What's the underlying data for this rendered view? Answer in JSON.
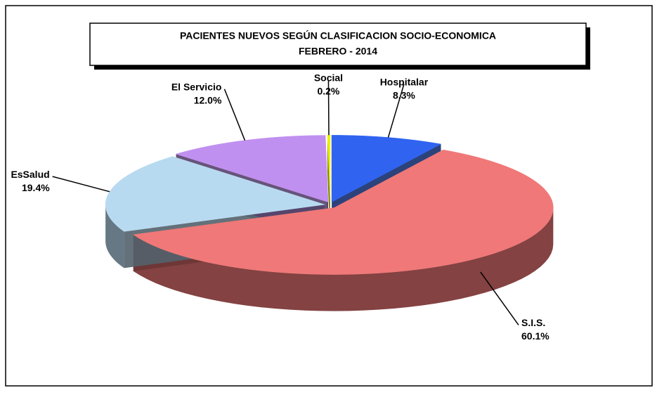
{
  "chart_data": {
    "type": "pie",
    "title": "PACIENTES NUEVOS SEGÚN CLASIFICACION SOCIO-ECONOMICA",
    "subtitle": "FEBRERO  - 2014",
    "categories": [
      "Hospitalar",
      "S.I.S.",
      "EsSalud",
      "El Servicio",
      "Social"
    ],
    "values": [
      8.3,
      60.1,
      19.4,
      12.0,
      0.2
    ],
    "value_labels": [
      "8.3%",
      "60.1%",
      "19.4%",
      "12.0%",
      "0.2%"
    ],
    "colors": [
      "#2f63f0",
      "#f07878",
      "#b8daf0",
      "#c090f0",
      "#f0f000"
    ]
  }
}
